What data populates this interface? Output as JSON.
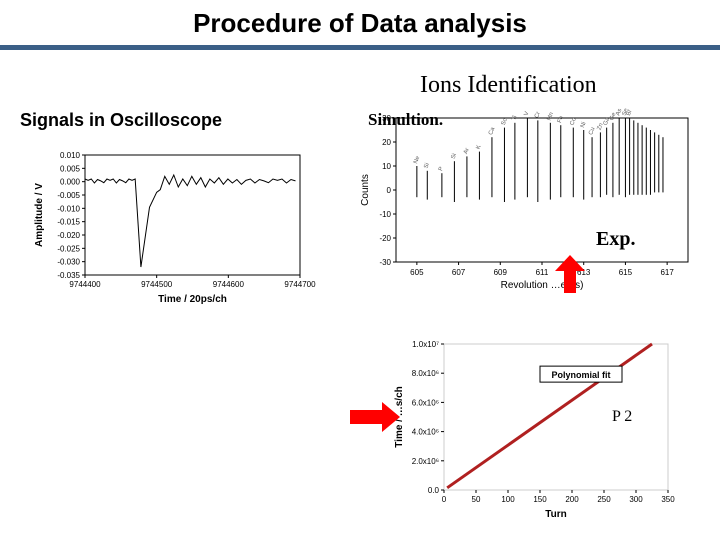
{
  "title": "Procedure of Data analysis",
  "labels": {
    "signals": "Signals in Oscilloscope",
    "ions": "Ions Identification",
    "simulation": "Simultion.",
    "exp": "Exp.",
    "p2": "P 2",
    "polyfit": "Polynomial fit"
  },
  "oscilloscope": {
    "type": "line",
    "xlabel": "Time / 20ps/ch",
    "ylabel": "Amplitude / V",
    "xlim": [
      9744400,
      9744700
    ],
    "ylim": [
      -0.035,
      0.01
    ],
    "xticks": {
      "start": 9744400,
      "step": 100,
      "count": 4
    },
    "yticks": {
      "start": -0.035,
      "step": 0.005,
      "count": 10
    },
    "trace_pre": [
      0.001,
      0.0005,
      0.001,
      -0.0005,
      0.0008,
      0.0003,
      -0.0004,
      0.001,
      0.0005,
      0.001,
      -0.0005,
      0.0008,
      0.0003,
      -0.0004,
      0.001,
      0.0005
    ],
    "dip_x_start": 9744470,
    "dip_min": -0.032,
    "trace_post": [
      -0.003,
      0.002,
      -0.001,
      0.0025,
      -0.002,
      0.001,
      -0.0015,
      0.002,
      -0.001,
      0.0015,
      -0.002,
      0.001,
      -0.0005,
      0.0015,
      -0.001,
      0.001,
      -0.0005,
      0.0008,
      -0.001,
      0.0005,
      0.001,
      -0.0005,
      0.0008,
      0.0003,
      -0.0004,
      0.001,
      0.0005,
      0.001,
      -0.0005,
      0.0008,
      0.0003
    ],
    "box_line_color": "#000000",
    "trace_color": "#000000"
  },
  "ions_chart": {
    "type": "mirror-spikes",
    "xlabel": "Revolution  …e(ns)",
    "ylabel": "Counts",
    "xlim": [
      604,
      618
    ],
    "ylim": [
      -30,
      30
    ],
    "xticks": [
      605,
      607,
      609,
      611,
      613,
      615,
      617
    ],
    "yticks": [
      -30,
      -20,
      -10,
      0,
      10,
      20,
      30
    ],
    "spikes_x": [
      605,
      605.5,
      606.2,
      606.8,
      607.4,
      608,
      608.6,
      609.2,
      609.7,
      610.3,
      610.8,
      611.4,
      611.9,
      612.5,
      613,
      613.4,
      613.8,
      614.1,
      614.4,
      614.7,
      615,
      615.2,
      615.4,
      615.6,
      615.8,
      616,
      616.2,
      616.4,
      616.6,
      616.8
    ],
    "up_heights": [
      10,
      8,
      7,
      12,
      14,
      16,
      22,
      26,
      28,
      30,
      29,
      28,
      27,
      26,
      25,
      22,
      24,
      26,
      28,
      30,
      30,
      30,
      29,
      28,
      27,
      26,
      25,
      24,
      23,
      22
    ],
    "down_heights": [
      3,
      4,
      3,
      5,
      3,
      4,
      3,
      5,
      4,
      3,
      5,
      4,
      3,
      3,
      4,
      3,
      3,
      2,
      3,
      2,
      3,
      2,
      2,
      2,
      2,
      2,
      2,
      1,
      1,
      1
    ],
    "stroke_color": "#000000",
    "label_color": "#808080",
    "ion_labels": [
      "Ne",
      "Si",
      "P",
      "Si",
      "Ar",
      "K",
      "Ca",
      "Sc",
      "Ti",
      "V",
      "Cr",
      "Mn",
      "Fe",
      "Co",
      "Ni",
      "Cu",
      "Zn",
      "Ga",
      "Ge",
      "As",
      "Se",
      "Br"
    ]
  },
  "polyfit_chart": {
    "type": "line",
    "xlabel": "Turn",
    "ylabel": "Time / …s/ch",
    "xlim": [
      0,
      350
    ],
    "ylim": [
      0,
      10000000.0
    ],
    "xticks": [
      0,
      50,
      100,
      150,
      200,
      250,
      300,
      350
    ],
    "yticks_raw": [
      0.0,
      2000000.0,
      4000000.0,
      6000000.0,
      8000000.0,
      10000000.0
    ],
    "ytick_labels": [
      "0.0",
      "2.0x10⁶",
      "4.0x10⁶",
      "6.0x10⁶",
      "8.0x10⁶",
      "1.0x10⁷"
    ],
    "line_start": [
      5,
      150000.0
    ],
    "line_end": [
      325,
      10000000.0
    ],
    "line_color": "#b02020",
    "line_width": 3,
    "box_color": "#cccccc",
    "fit_box_border": "#000000"
  },
  "arrows": {
    "fill": "#ff0000"
  }
}
